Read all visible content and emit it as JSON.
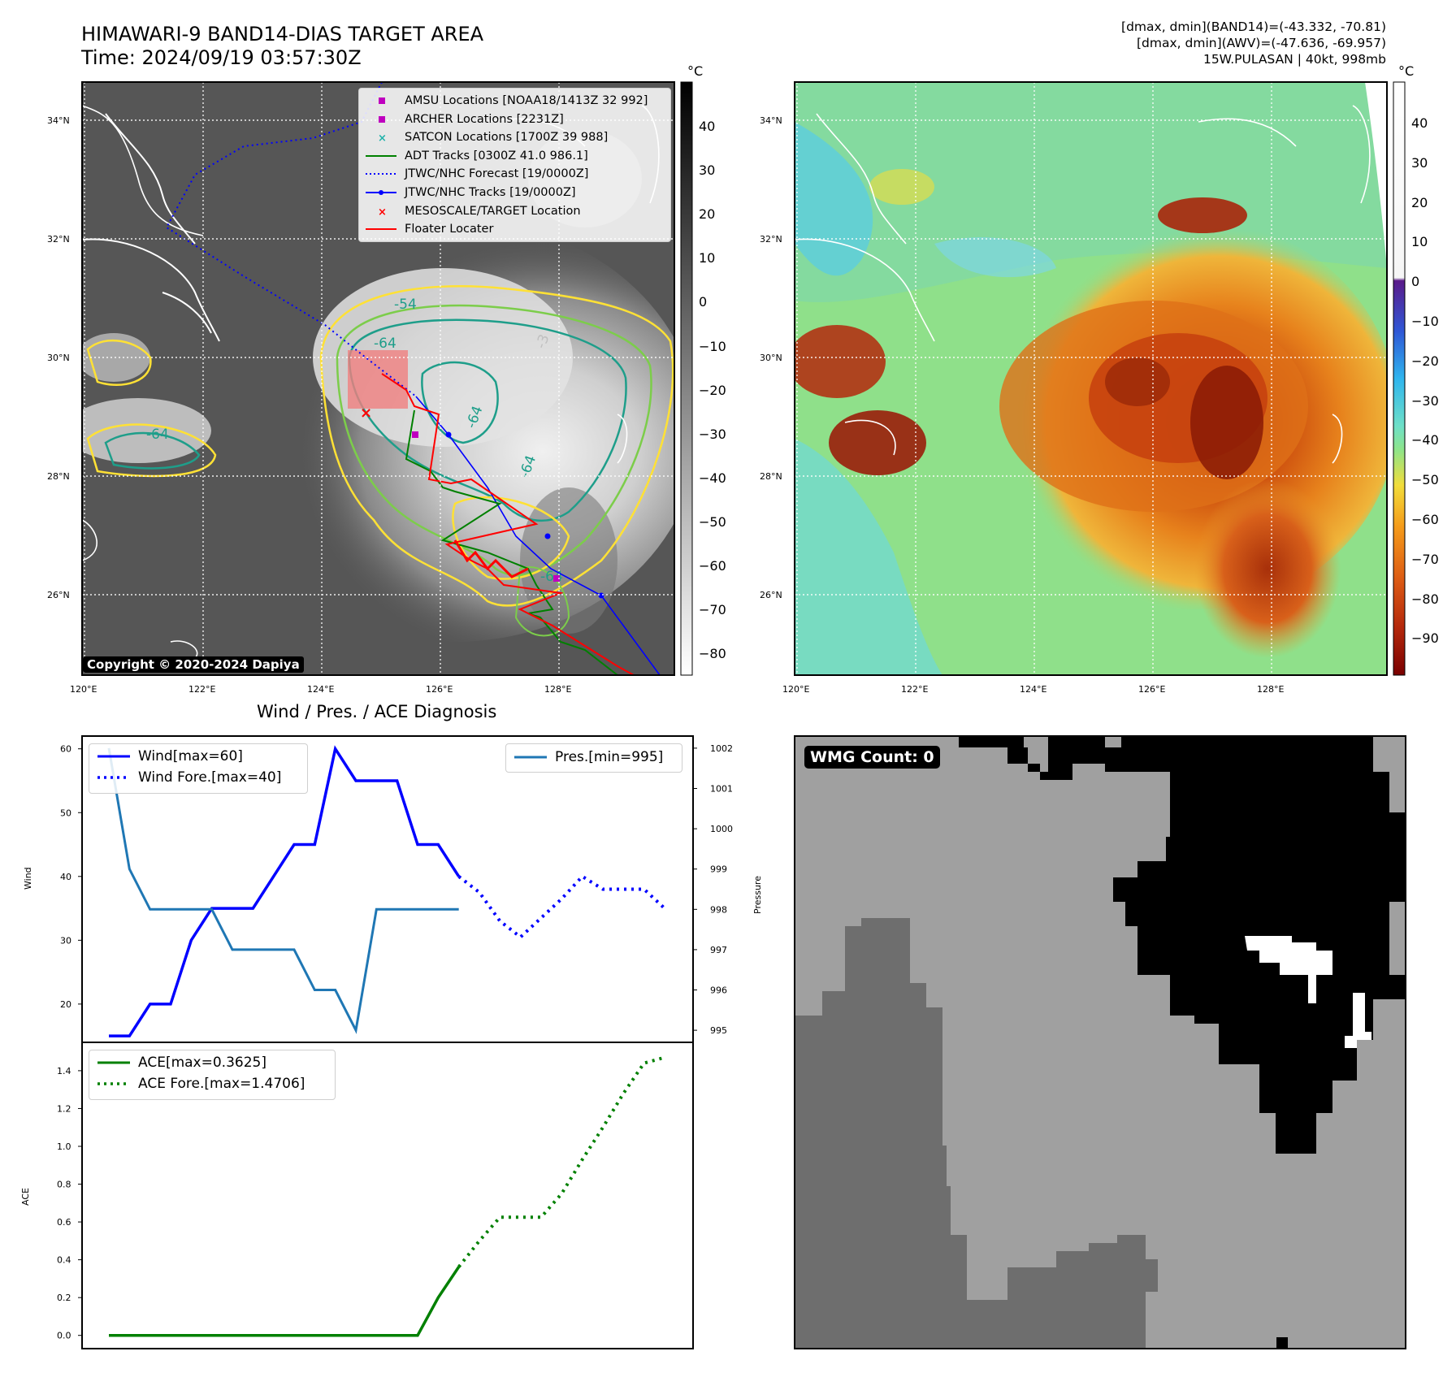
{
  "header": {
    "title_line1": "HIMAWARI-9 BAND14-DIAS TARGET AREA",
    "title_line2": "Time: 2024/09/19 03:57:30Z",
    "info_line1": "[dmax, dmin](BAND14)=(-43.332, -70.81)",
    "info_line2": "[dmax, dmin](AWV)=(-47.636, -69.957)",
    "info_line3": "15W.PULASAN | 40kt, 998mb"
  },
  "maps": {
    "lat_labels": [
      "34°N",
      "32°N",
      "30°N",
      "28°N",
      "26°N"
    ],
    "lon_labels": [
      "120°E",
      "122°E",
      "124°E",
      "126°E",
      "128°E"
    ],
    "copyright": "Copyright © 2020-2024 Dapiya",
    "contour_labels": [
      "-54",
      "-64",
      "-64",
      "-64",
      "-64",
      "-64",
      "-3"
    ],
    "legend": [
      {
        "label": "AMSU Locations [NOAA18/1413Z 32 992]",
        "symbol": "square",
        "color": "#bf00bf"
      },
      {
        "label": "ARCHER Locations [2231Z]",
        "symbol": "square",
        "color": "#bf00bf"
      },
      {
        "label": "SATCON Locations [1700Z 39 988]",
        "symbol": "x",
        "color": "#20b2aa"
      },
      {
        "label": "ADT Tracks [0300Z 41.0 986.1]",
        "symbol": "line",
        "color": "#008000"
      },
      {
        "label": "JTWC/NHC Forecast [19/0000Z]",
        "symbol": "dotted",
        "color": "#0000ff"
      },
      {
        "label": "JTWC/NHC Tracks [19/0000Z]",
        "symbol": "line-dot",
        "color": "#0000ff"
      },
      {
        "label": "MESOSCALE/TARGET Location",
        "symbol": "x",
        "color": "#ff0000"
      },
      {
        "label": "Floater Locater",
        "symbol": "line",
        "color": "#ff0000"
      }
    ],
    "colorbar_left": {
      "unit": "°C",
      "ticks": [
        "40",
        "30",
        "20",
        "10",
        "0",
        "−10",
        "−20",
        "−30",
        "−40",
        "−50",
        "−60",
        "−70",
        "−80"
      ]
    },
    "colorbar_right": {
      "unit": "°C",
      "ticks": [
        "40",
        "30",
        "20",
        "10",
        "0",
        "−10",
        "−20",
        "−30",
        "−40",
        "−50",
        "−60",
        "−70",
        "−80",
        "−90"
      ]
    },
    "colors": {
      "track_blue": "#0000ff",
      "adt_green": "#008000",
      "floater_red": "#ff0000",
      "contour_yellow": "#ffe135",
      "contour_green": "#7ccd4a",
      "contour_teal": "#1e9e8a"
    }
  },
  "wmg": {
    "label": "WMG Count: 0"
  },
  "chart_data": [
    {
      "type": "line",
      "title": "Wind / Pres. / ACE Diagnosis",
      "xlabel": "",
      "ylabel": "Wind",
      "ylabel2": "Pressure",
      "ylim": [
        14,
        62
      ],
      "ylim2": [
        994.7,
        1002.3
      ],
      "yticks": [
        "20",
        "30",
        "40",
        "50",
        "60"
      ],
      "yticks2": [
        "995",
        "996",
        "997",
        "998",
        "999",
        "1000",
        "1001",
        "1002"
      ],
      "x": [
        0,
        1,
        2,
        3,
        4,
        5,
        6,
        7,
        8,
        9,
        10,
        11,
        12,
        13,
        14,
        15,
        16,
        17,
        18,
        19,
        20,
        21,
        22,
        23,
        24,
        25,
        26,
        27
      ],
      "series": [
        {
          "name": "Wind[max=60]",
          "style": "solid",
          "color": "#0000ff",
          "axis": "left",
          "x": [
            0,
            1,
            2,
            3,
            4,
            5,
            6,
            7,
            8,
            9,
            10,
            11,
            12,
            13,
            14,
            15,
            16,
            17
          ],
          "values": [
            15,
            15,
            20,
            20,
            30,
            35,
            35,
            35,
            40,
            45,
            45,
            60,
            55,
            55,
            55,
            45,
            45,
            40
          ]
        },
        {
          "name": "Wind Fore.[max=40]",
          "style": "dotted",
          "color": "#0000ff",
          "axis": "left",
          "x": [
            17,
            18,
            19,
            20,
            21,
            22,
            23,
            24,
            25,
            26,
            27
          ],
          "values": [
            40,
            37.5,
            33,
            30.5,
            33.5,
            36.5,
            40,
            38,
            38,
            38,
            35
          ]
        },
        {
          "name": "Pres.[min=995]",
          "style": "solid",
          "color": "#1f77b4",
          "axis": "right",
          "x": [
            0,
            1,
            2,
            3,
            4,
            5,
            6,
            7,
            8,
            9,
            10,
            11,
            12,
            13,
            14,
            15,
            16,
            17
          ],
          "values": [
            1002,
            999,
            998,
            998,
            998,
            998,
            997,
            997,
            997,
            997,
            996,
            996,
            995,
            998,
            998,
            998,
            998,
            998
          ]
        }
      ],
      "legend_left": [
        "Wind[max=60]",
        "Wind Fore.[max=40]"
      ],
      "legend_right": [
        "Pres.[min=995]"
      ]
    },
    {
      "type": "line",
      "title": "",
      "xlabel": "",
      "ylabel": "ACE",
      "ylim": [
        -0.07,
        1.55
      ],
      "yticks": [
        "0.0",
        "0.2",
        "0.4",
        "0.6",
        "0.8",
        "1.0",
        "1.2",
        "1.4"
      ],
      "series": [
        {
          "name": "ACE[max=0.3625]",
          "style": "solid",
          "color": "#008000",
          "x": [
            0,
            1,
            2,
            3,
            4,
            5,
            6,
            7,
            8,
            9,
            10,
            11,
            12,
            13,
            14,
            15,
            16,
            17
          ],
          "values": [
            0,
            0,
            0,
            0,
            0,
            0,
            0,
            0,
            0,
            0,
            0,
            0,
            0,
            0,
            0,
            0,
            0.2,
            0.3625
          ]
        },
        {
          "name": "ACE Fore.[max=1.4706]",
          "style": "dotted",
          "color": "#008000",
          "x": [
            17,
            18,
            19,
            20,
            21,
            22,
            23,
            24,
            25,
            26,
            27
          ],
          "values": [
            0.3625,
            0.5,
            0.625,
            0.625,
            0.625,
            0.75,
            0.93,
            1.1,
            1.28,
            1.44,
            1.47
          ]
        }
      ]
    }
  ]
}
